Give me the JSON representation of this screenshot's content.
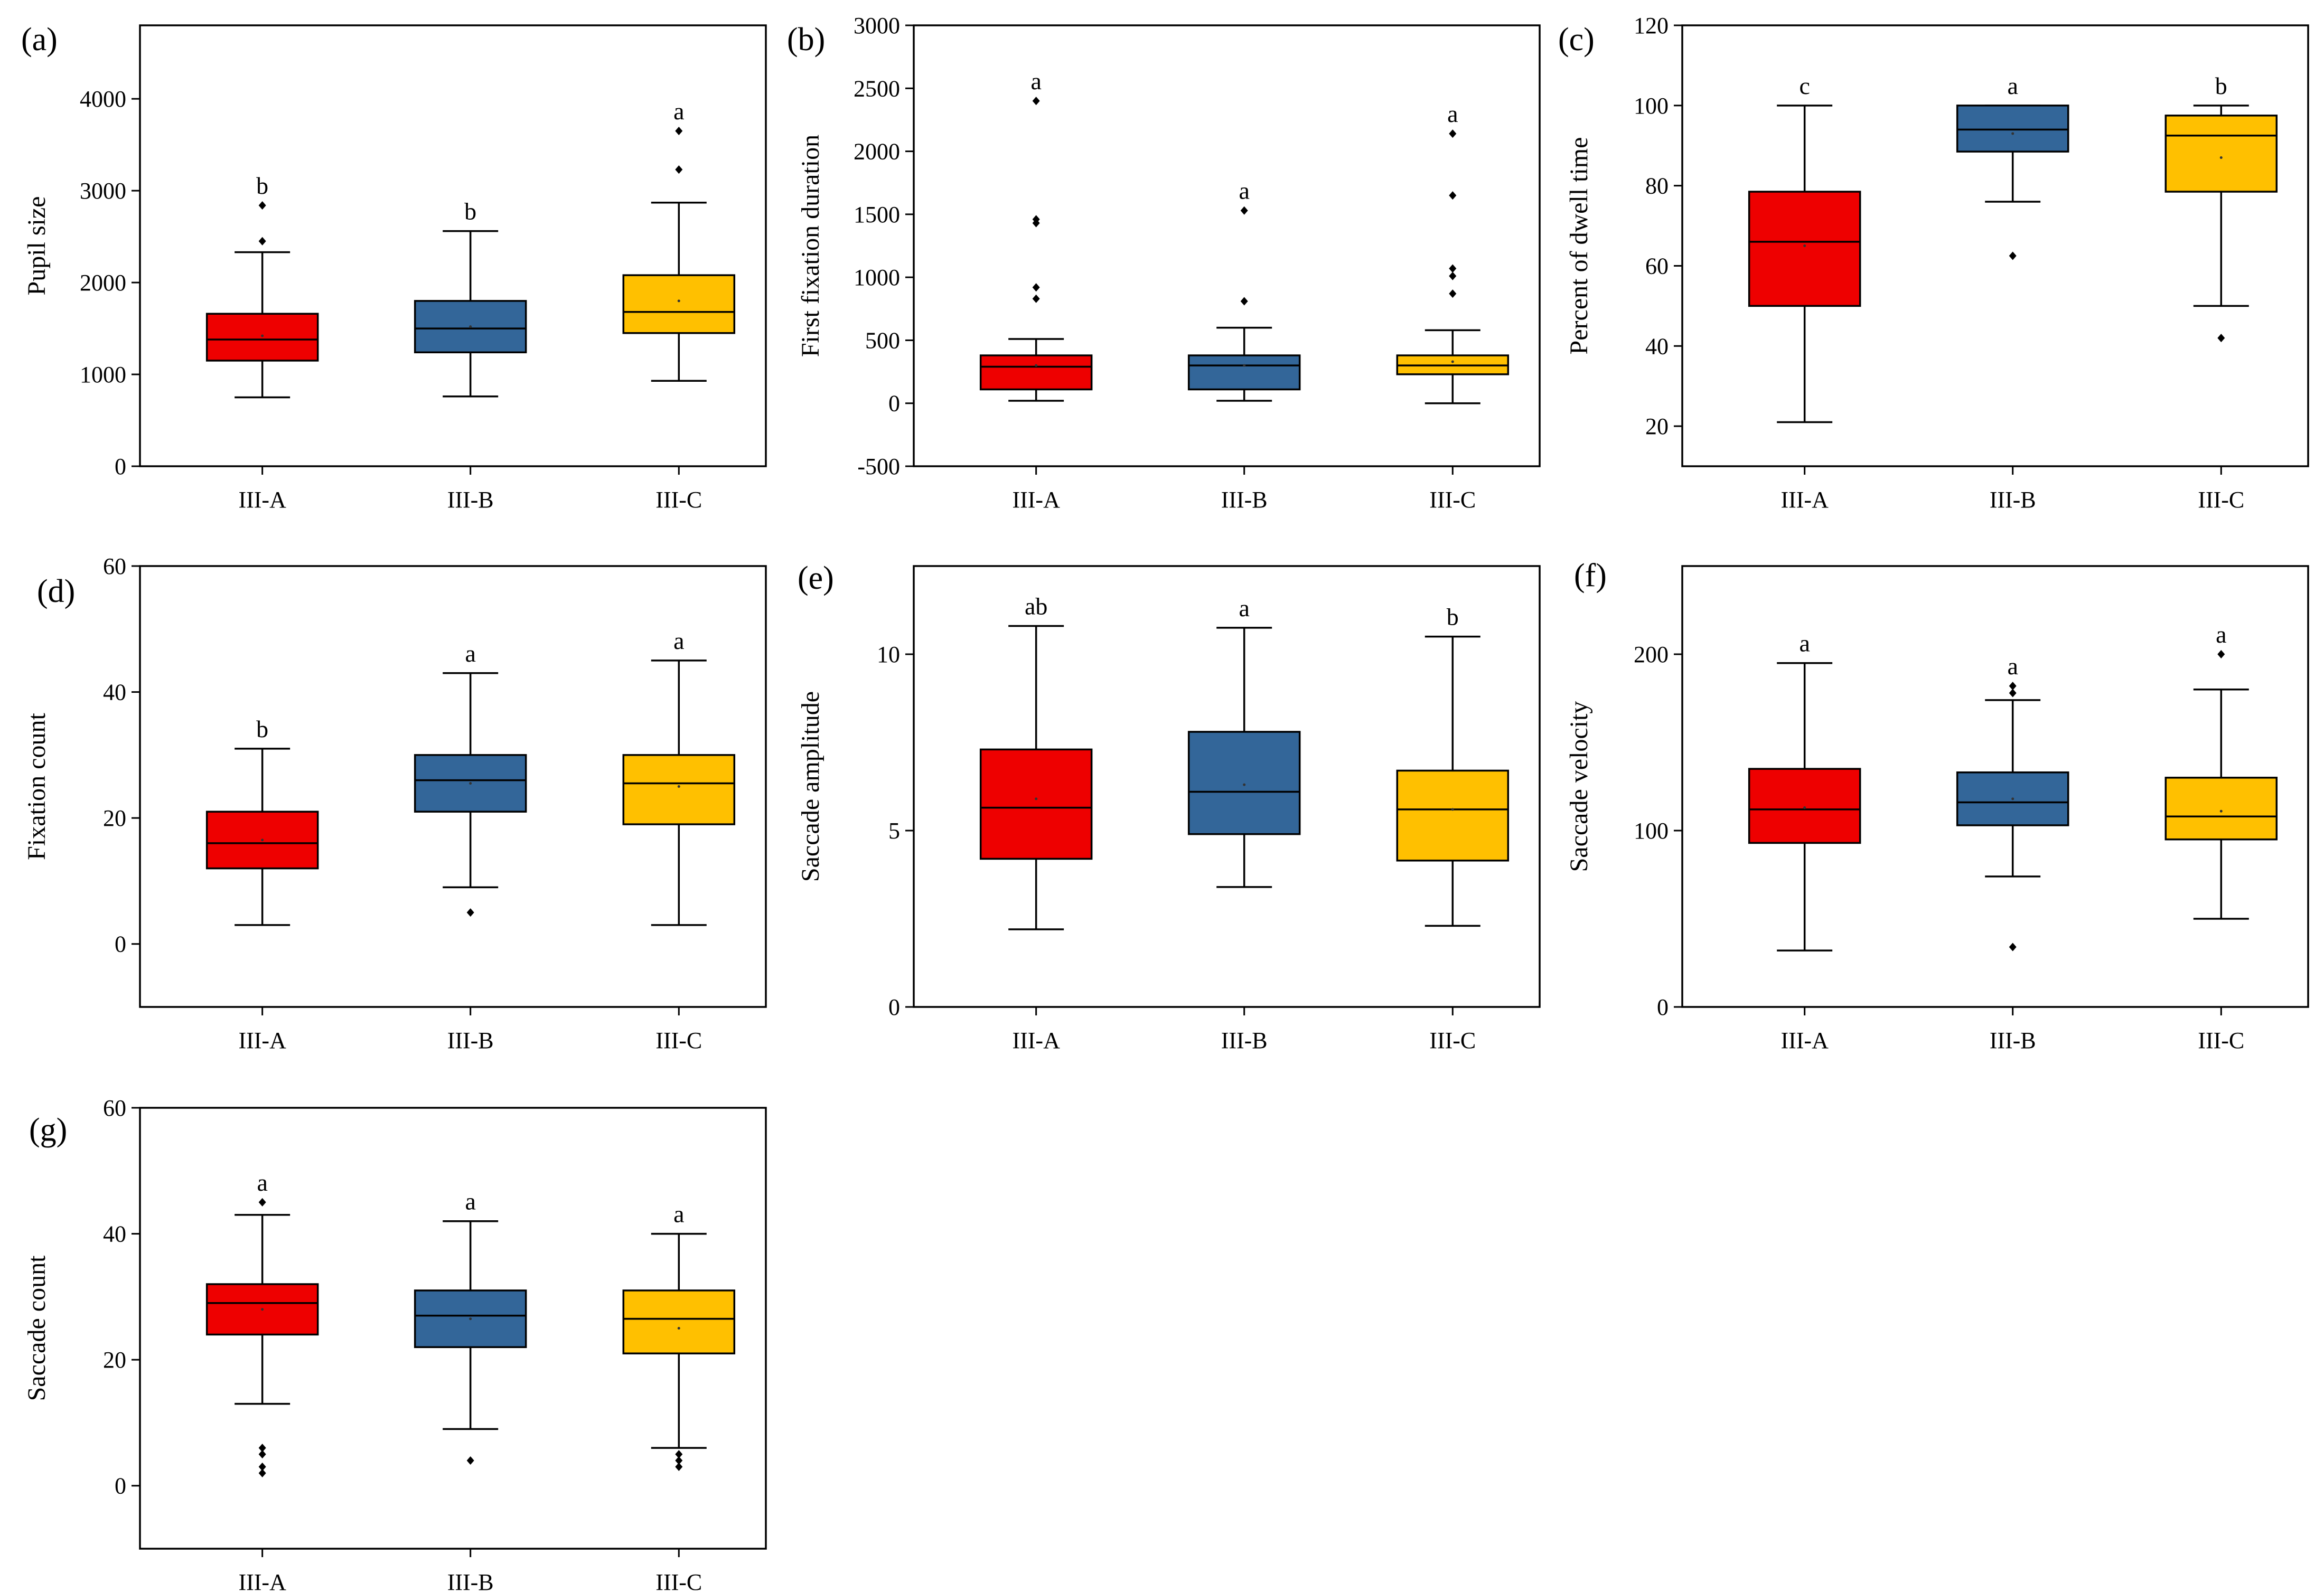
{
  "colors": {
    "III-A": "#ee0000",
    "III-B": "#336699",
    "III-C": "#ffc000"
  },
  "chart_data": [
    {
      "type": "box",
      "tag": "(a)",
      "ylabel": "Pupil size",
      "ylim": [
        0,
        4800
      ],
      "yticks": [
        0,
        1000,
        2000,
        3000,
        4000
      ],
      "categories": [
        "III-A",
        "III-B",
        "III-C"
      ],
      "boxes": [
        {
          "category": "III-A",
          "whisker_low": 750,
          "q1": 1150,
          "median": 1380,
          "q3": 1660,
          "whisker_high": 2330,
          "mean": 1420,
          "outliers": [
            2450,
            2840
          ],
          "letter": "b"
        },
        {
          "category": "III-B",
          "whisker_low": 760,
          "q1": 1240,
          "median": 1500,
          "q3": 1800,
          "whisker_high": 2560,
          "mean": 1520,
          "outliers": [],
          "letter": "b"
        },
        {
          "category": "III-C",
          "whisker_low": 930,
          "q1": 1450,
          "median": 1680,
          "q3": 2080,
          "whisker_high": 2870,
          "mean": 1800,
          "outliers": [
            3230,
            3650
          ],
          "letter": "a"
        }
      ]
    },
    {
      "type": "box",
      "tag": "(b)",
      "ylabel": "First fixation duration",
      "ylim": [
        -500,
        3000
      ],
      "yticks": [
        -500,
        0,
        500,
        1000,
        1500,
        2000,
        2500,
        3000
      ],
      "categories": [
        "III-A",
        "III-B",
        "III-C"
      ],
      "boxes": [
        {
          "category": "III-A",
          "whisker_low": 20,
          "q1": 110,
          "median": 290,
          "q3": 380,
          "whisker_high": 510,
          "mean": 300,
          "outliers": [
            830,
            920,
            1430,
            1460,
            2400
          ],
          "letter": "a"
        },
        {
          "category": "III-B",
          "whisker_low": 20,
          "q1": 110,
          "median": 300,
          "q3": 380,
          "whisker_high": 600,
          "mean": 300,
          "outliers": [
            810,
            1530
          ],
          "letter": "a"
        },
        {
          "category": "III-C",
          "whisker_low": 0,
          "q1": 230,
          "median": 300,
          "q3": 380,
          "whisker_high": 580,
          "mean": 330,
          "outliers": [
            870,
            1010,
            1070,
            1650,
            2140
          ],
          "letter": "a"
        }
      ]
    },
    {
      "type": "box",
      "tag": "(c)",
      "ylabel": "Percent of dwell time",
      "ylim": [
        10,
        120
      ],
      "yticks": [
        20,
        40,
        60,
        80,
        100,
        120
      ],
      "categories": [
        "III-A",
        "III-B",
        "III-C"
      ],
      "boxes": [
        {
          "category": "III-A",
          "whisker_low": 21,
          "q1": 50,
          "median": 66,
          "q3": 78.5,
          "whisker_high": 100,
          "mean": 65,
          "outliers": [],
          "letter": "c"
        },
        {
          "category": "III-B",
          "whisker_low": 76,
          "q1": 88.5,
          "median": 94,
          "q3": 100,
          "whisker_high": 100,
          "mean": 93,
          "outliers": [
            62.5
          ],
          "letter": "a"
        },
        {
          "category": "III-C",
          "whisker_low": 50,
          "q1": 78.5,
          "median": 92.5,
          "q3": 97.5,
          "whisker_high": 100,
          "mean": 87,
          "outliers": [
            42
          ],
          "letter": "b"
        }
      ]
    },
    {
      "type": "box",
      "tag": "(d)",
      "ylabel": "Fixation count",
      "ylim": [
        -10,
        60
      ],
      "yticks": [
        0,
        20,
        40,
        60
      ],
      "categories": [
        "III-A",
        "III-B",
        "III-C"
      ],
      "boxes": [
        {
          "category": "III-A",
          "whisker_low": 3,
          "q1": 12,
          "median": 16,
          "q3": 21,
          "whisker_high": 31,
          "mean": 16.5,
          "outliers": [],
          "letter": "b"
        },
        {
          "category": "III-B",
          "whisker_low": 9,
          "q1": 21,
          "median": 26,
          "q3": 30,
          "whisker_high": 43,
          "mean": 25.5,
          "outliers": [
            5
          ],
          "letter": "a"
        },
        {
          "category": "III-C",
          "whisker_low": 3,
          "q1": 19,
          "median": 25.5,
          "q3": 30,
          "whisker_high": 45,
          "mean": 25,
          "outliers": [],
          "letter": "a"
        }
      ]
    },
    {
      "type": "box",
      "tag": "(e)",
      "ylabel": "Saccade amplitude",
      "ylim": [
        0,
        12.5
      ],
      "yticks": [
        0,
        5,
        10
      ],
      "categories": [
        "III-A",
        "III-B",
        "III-C"
      ],
      "boxes": [
        {
          "category": "III-A",
          "whisker_low": 2.2,
          "q1": 4.2,
          "median": 5.65,
          "q3": 7.3,
          "whisker_high": 10.8,
          "mean": 5.9,
          "outliers": [],
          "letter": "ab"
        },
        {
          "category": "III-B",
          "whisker_low": 3.4,
          "q1": 4.9,
          "median": 6.1,
          "q3": 7.8,
          "whisker_high": 10.75,
          "mean": 6.3,
          "outliers": [],
          "letter": "a"
        },
        {
          "category": "III-C",
          "whisker_low": 2.3,
          "q1": 4.15,
          "median": 5.6,
          "q3": 6.7,
          "whisker_high": 10.5,
          "mean": 5.6,
          "outliers": [],
          "letter": "b"
        }
      ]
    },
    {
      "type": "box",
      "tag": "(f)",
      "ylabel": "Saccade velocity",
      "ylim": [
        0,
        250
      ],
      "yticks": [
        0,
        100,
        200
      ],
      "categories": [
        "III-A",
        "III-B",
        "III-C"
      ],
      "boxes": [
        {
          "category": "III-A",
          "whisker_low": 32,
          "q1": 93,
          "median": 112,
          "q3": 135,
          "whisker_high": 195,
          "mean": 113,
          "outliers": [],
          "letter": "a"
        },
        {
          "category": "III-B",
          "whisker_low": 74,
          "q1": 103,
          "median": 116,
          "q3": 133,
          "whisker_high": 174,
          "mean": 118,
          "outliers": [
            34,
            178,
            182
          ],
          "letter": "a"
        },
        {
          "category": "III-C",
          "whisker_low": 50,
          "q1": 95,
          "median": 108,
          "q3": 130,
          "whisker_high": 180,
          "mean": 111,
          "outliers": [
            200
          ],
          "letter": "a"
        }
      ]
    },
    {
      "type": "box",
      "tag": "(g)",
      "ylabel": "Saccade count",
      "ylim": [
        -10,
        60
      ],
      "yticks": [
        0,
        20,
        40,
        60
      ],
      "categories": [
        "III-A",
        "III-B",
        "III-C"
      ],
      "boxes": [
        {
          "category": "III-A",
          "whisker_low": 13,
          "q1": 24,
          "median": 29,
          "q3": 32,
          "whisker_high": 43,
          "mean": 28,
          "outliers": [
            2,
            3,
            5,
            6,
            45
          ],
          "letter": "a"
        },
        {
          "category": "III-B",
          "whisker_low": 9,
          "q1": 22,
          "median": 27,
          "q3": 31,
          "whisker_high": 42,
          "mean": 26.5,
          "outliers": [
            4
          ],
          "letter": "a"
        },
        {
          "category": "III-C",
          "whisker_low": 6,
          "q1": 21,
          "median": 26.5,
          "q3": 31,
          "whisker_high": 40,
          "mean": 25,
          "outliers": [
            3,
            4,
            5
          ],
          "letter": "a"
        }
      ]
    }
  ]
}
